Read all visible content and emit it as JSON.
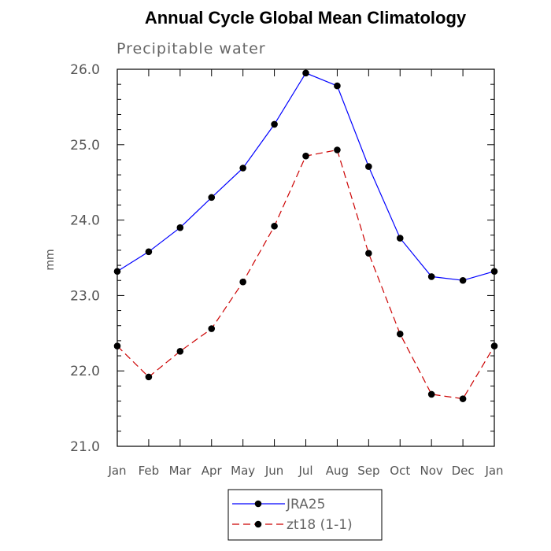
{
  "chart_data": {
    "type": "line",
    "title": "Annual Cycle Global Mean Climatology",
    "subtitle": "Precipitable water",
    "xlabel": "",
    "ylabel": "mm",
    "categories": [
      "Jan",
      "Feb",
      "Mar",
      "Apr",
      "May",
      "Jun",
      "Jul",
      "Aug",
      "Sep",
      "Oct",
      "Nov",
      "Dec",
      "Jan"
    ],
    "ylim": [
      21.0,
      26.0
    ],
    "yticks": [
      "21.0",
      "22.0",
      "23.0",
      "24.0",
      "25.0",
      "26.0"
    ],
    "grid": false,
    "legend_position": "bottom-center",
    "series": [
      {
        "name": "JRA25",
        "color": "#0000ff",
        "line_style": "solid",
        "marker": "filled-circle",
        "values": [
          23.32,
          23.58,
          23.9,
          24.3,
          24.69,
          25.27,
          25.95,
          25.78,
          24.71,
          23.76,
          23.25,
          23.2,
          23.32
        ]
      },
      {
        "name": "zt18 (1-1)",
        "color": "#cc0000",
        "line_style": "dashed",
        "marker": "filled-circle",
        "values": [
          22.33,
          21.92,
          22.26,
          22.56,
          23.18,
          23.92,
          24.85,
          24.93,
          23.56,
          22.49,
          21.69,
          21.63,
          22.33
        ]
      }
    ]
  }
}
